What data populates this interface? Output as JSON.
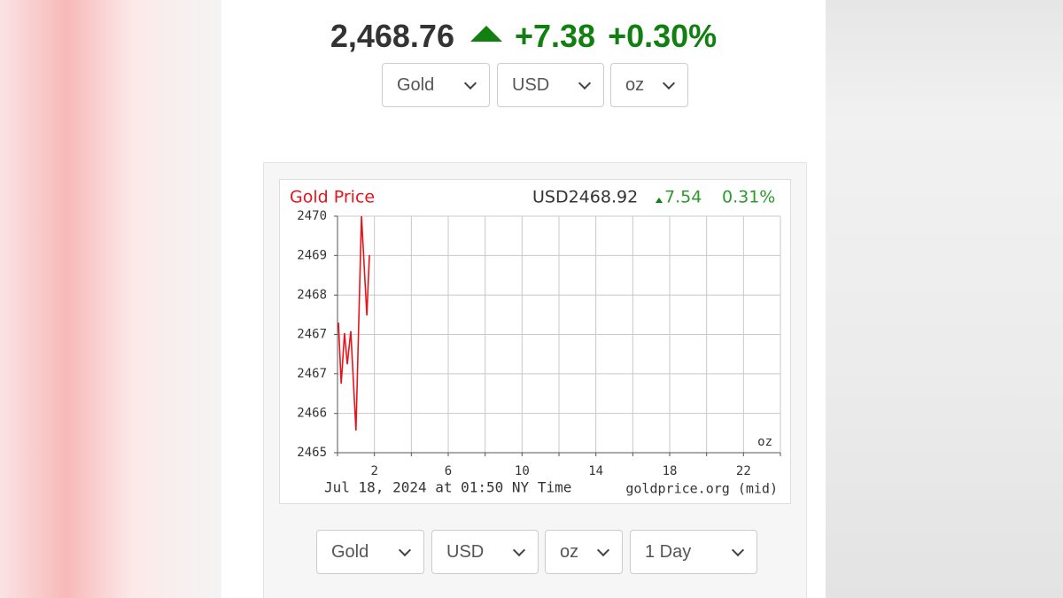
{
  "header": {
    "price": "2,468.76",
    "change": "+7.38",
    "percent": "+0.30%"
  },
  "selectors_top": [
    "Gold",
    "USD",
    "oz"
  ],
  "chart_data": {
    "type": "line",
    "title": "Gold Price",
    "quote": "USD2468.92",
    "quote_change": "7.54",
    "quote_percent": "0.31%",
    "unit": "oz",
    "timestamp": "Jul 18, 2024 at 01:50 NY Time",
    "source": "goldprice.org (mid)",
    "x": [
      0.05,
      0.2,
      0.38,
      0.53,
      0.72,
      1.0,
      1.3,
      1.59,
      1.73
    ],
    "series": [
      {
        "name": "Gold",
        "color": "#e8141b",
        "values": [
          2467.75,
          2466.46,
          2467.53,
          2466.87,
          2467.57,
          2465.47,
          2470.0,
          2467.9,
          2469.18
        ]
      }
    ],
    "xlim": [
      0,
      24
    ],
    "xticks": [
      2,
      6,
      10,
      14,
      18,
      22
    ],
    "xgrid": [
      0,
      2,
      4,
      6,
      8,
      10,
      12,
      14,
      16,
      18,
      20,
      22,
      24
    ],
    "ylim": [
      2465,
      2470
    ],
    "yticks": [
      2465,
      {
        "value": 2465.83,
        "label": "2466"
      },
      {
        "value": 2466.67,
        "label": "2467"
      },
      {
        "value": 2467.5,
        "label": "2467"
      },
      {
        "value": 2468.33,
        "label": "2468"
      },
      {
        "value": 2469.17,
        "label": "2469"
      },
      2470
    ],
    "grid": true
  },
  "selectors_bottom": [
    "Gold",
    "USD",
    "oz",
    "1 Day"
  ]
}
